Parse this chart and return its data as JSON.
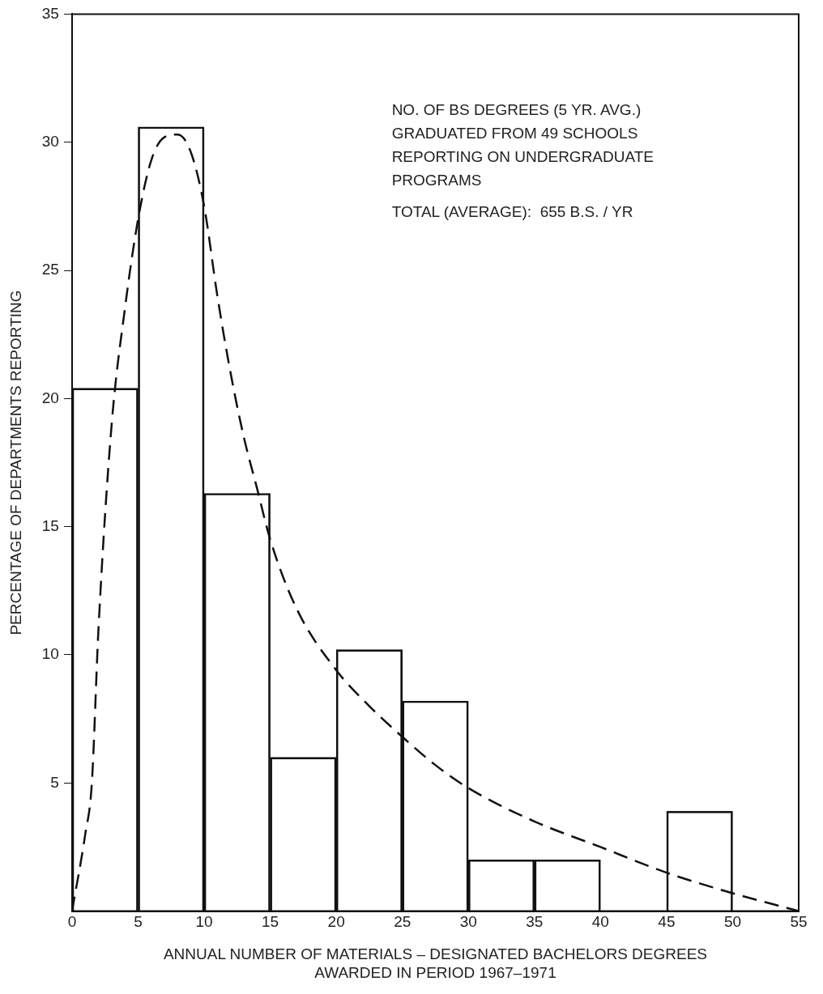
{
  "chart_data": {
    "type": "bar",
    "xlabel": "ANNUAL NUMBER OF MATERIALS – DESIGNATED BACHELORS DEGREES\nAWARDED IN PERIOD 1967–1971",
    "ylabel": "PERCENTAGE OF DEPARTMENTS REPORTING",
    "annotations": [
      "NO. OF BS DEGREES (5 YR. AVG.)\nGRADUATED FROM 49 SCHOOLS\nREPORTING ON UNDERGRADUATE\nPROGRAMS",
      "TOTAL (AVERAGE):  655 B.S. / YR"
    ],
    "series": [
      {
        "color": "#111111",
        "x": [
          2.5,
          7.5,
          12.5,
          17.5,
          22.5,
          27.5,
          32.5,
          37.5,
          42.5,
          47.5,
          52.5
        ],
        "values": [
          20.4,
          30.6,
          16.3,
          6.0,
          10.2,
          8.2,
          2.0,
          2.0,
          0,
          3.9,
          0
        ]
      },
      {
        "type": "line",
        "color": "#111111",
        "line_style": "dashed",
        "marker": "none",
        "x": [
          0,
          1,
          1.5,
          2,
          3,
          4,
          5,
          6,
          7,
          8,
          9,
          10,
          11,
          12,
          13,
          14,
          15,
          17,
          20,
          22.5,
          25,
          27.5,
          30,
          35,
          40,
          45,
          50,
          55
        ],
        "values": [
          0,
          3,
          5,
          11,
          19,
          23.5,
          27,
          29.3,
          30.2,
          30.3,
          29.6,
          27.5,
          24,
          21,
          18.5,
          16.5,
          14.5,
          11.8,
          9.4,
          8,
          6.8,
          5.7,
          4.8,
          3.5,
          2.5,
          1.5,
          0.7,
          0
        ]
      }
    ],
    "xlim": [
      0,
      55
    ],
    "xticks": [
      0,
      5,
      10,
      15,
      20,
      25,
      30,
      35,
      40,
      45,
      50,
      55
    ],
    "ylim": [
      0,
      35
    ],
    "yticks": [
      5,
      10,
      15,
      20,
      25,
      30,
      35
    ],
    "grid": false,
    "legend": false
  }
}
